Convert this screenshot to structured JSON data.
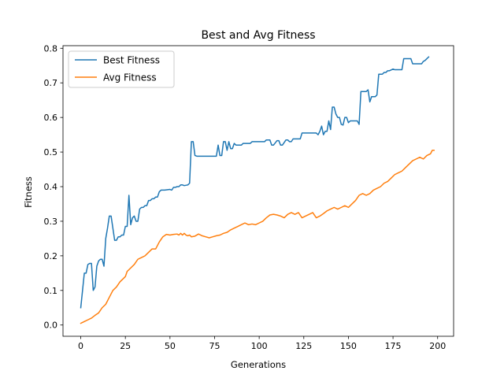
{
  "chart_data": {
    "type": "line",
    "title": "Best and Avg Fitness",
    "xlabel": "Generations",
    "ylabel": "Fitness",
    "xlim": [
      -9.95,
      208.95
    ],
    "ylim": [
      -0.0325,
      0.8075
    ],
    "xticks": [
      0,
      25,
      50,
      75,
      100,
      125,
      150,
      175,
      200
    ],
    "yticks": [
      0.0,
      0.1,
      0.2,
      0.3,
      0.4,
      0.5,
      0.6,
      0.7,
      0.8
    ],
    "xtick_labels": [
      "0",
      "25",
      "50",
      "75",
      "100",
      "125",
      "150",
      "175",
      "200"
    ],
    "ytick_labels": [
      "0.0",
      "0.1",
      "0.2",
      "0.3",
      "0.4",
      "0.5",
      "0.6",
      "0.7",
      "0.8"
    ],
    "grid": false,
    "legend_position": "top-left",
    "series": [
      {
        "name": "Best Fitness",
        "color": "#1f77b4",
        "points": [
          [
            0,
            0.05
          ],
          [
            1,
            0.1
          ],
          [
            2,
            0.15
          ],
          [
            3,
            0.15
          ],
          [
            4,
            0.175
          ],
          [
            5,
            0.178
          ],
          [
            6,
            0.178
          ],
          [
            7,
            0.1
          ],
          [
            8,
            0.11
          ],
          [
            9,
            0.17
          ],
          [
            10,
            0.185
          ],
          [
            11,
            0.19
          ],
          [
            12,
            0.19
          ],
          [
            13,
            0.17
          ],
          [
            14,
            0.25
          ],
          [
            15,
            0.28
          ],
          [
            16,
            0.315
          ],
          [
            17,
            0.315
          ],
          [
            18,
            0.28
          ],
          [
            19,
            0.245
          ],
          [
            20,
            0.245
          ],
          [
            21,
            0.255
          ],
          [
            22,
            0.255
          ],
          [
            23,
            0.26
          ],
          [
            24,
            0.26
          ],
          [
            25,
            0.285
          ],
          [
            26,
            0.285
          ],
          [
            27,
            0.375
          ],
          [
            28,
            0.29
          ],
          [
            29,
            0.31
          ],
          [
            30,
            0.315
          ],
          [
            31,
            0.3
          ],
          [
            32,
            0.3
          ],
          [
            33,
            0.335
          ],
          [
            34,
            0.34
          ],
          [
            35,
            0.34
          ],
          [
            36,
            0.345
          ],
          [
            37,
            0.345
          ],
          [
            38,
            0.36
          ],
          [
            39,
            0.36
          ],
          [
            40,
            0.365
          ],
          [
            41,
            0.365
          ],
          [
            42,
            0.37
          ],
          [
            43,
            0.37
          ],
          [
            44,
            0.385
          ],
          [
            45,
            0.39
          ],
          [
            47,
            0.39
          ],
          [
            50,
            0.392
          ],
          [
            51,
            0.39
          ],
          [
            52,
            0.398
          ],
          [
            53,
            0.398
          ],
          [
            54,
            0.4
          ],
          [
            55,
            0.4
          ],
          [
            56,
            0.405
          ],
          [
            57,
            0.405
          ],
          [
            58,
            0.403
          ],
          [
            60,
            0.405
          ],
          [
            61,
            0.41
          ],
          [
            62,
            0.53
          ],
          [
            63,
            0.53
          ],
          [
            64,
            0.49
          ],
          [
            65,
            0.488
          ],
          [
            66,
            0.488
          ],
          [
            70,
            0.488
          ],
          [
            75,
            0.488
          ],
          [
            76,
            0.488
          ],
          [
            77,
            0.52
          ],
          [
            78,
            0.49
          ],
          [
            79,
            0.49
          ],
          [
            80,
            0.53
          ],
          [
            81,
            0.53
          ],
          [
            82,
            0.505
          ],
          [
            83,
            0.53
          ],
          [
            84,
            0.51
          ],
          [
            85,
            0.51
          ],
          [
            86,
            0.525
          ],
          [
            87,
            0.52
          ],
          [
            90,
            0.52
          ],
          [
            91,
            0.525
          ],
          [
            95,
            0.525
          ],
          [
            96,
            0.53
          ],
          [
            100,
            0.53
          ],
          [
            103,
            0.53
          ],
          [
            104,
            0.535
          ],
          [
            106,
            0.535
          ],
          [
            107,
            0.52
          ],
          [
            108,
            0.52
          ],
          [
            110,
            0.533
          ],
          [
            111,
            0.533
          ],
          [
            112,
            0.52
          ],
          [
            113,
            0.52
          ],
          [
            115,
            0.535
          ],
          [
            116,
            0.535
          ],
          [
            117,
            0.53
          ],
          [
            118,
            0.53
          ],
          [
            119,
            0.538
          ],
          [
            123,
            0.538
          ],
          [
            124,
            0.555
          ],
          [
            127,
            0.555
          ],
          [
            132,
            0.555
          ],
          [
            133,
            0.55
          ],
          [
            134,
            0.56
          ],
          [
            135,
            0.575
          ],
          [
            136,
            0.55
          ],
          [
            137,
            0.56
          ],
          [
            138,
            0.56
          ],
          [
            139,
            0.59
          ],
          [
            140,
            0.565
          ],
          [
            141,
            0.63
          ],
          [
            142,
            0.63
          ],
          [
            143,
            0.61
          ],
          [
            144,
            0.6
          ],
          [
            145,
            0.6
          ],
          [
            146,
            0.58
          ],
          [
            147,
            0.578
          ],
          [
            148,
            0.6
          ],
          [
            149,
            0.6
          ],
          [
            150,
            0.585
          ],
          [
            151,
            0.59
          ],
          [
            155,
            0.59
          ],
          [
            156,
            0.58
          ],
          [
            157,
            0.675
          ],
          [
            160,
            0.675
          ],
          [
            161,
            0.68
          ],
          [
            162,
            0.645
          ],
          [
            163,
            0.66
          ],
          [
            165,
            0.66
          ],
          [
            166,
            0.665
          ],
          [
            167,
            0.725
          ],
          [
            168,
            0.725
          ],
          [
            169,
            0.725
          ],
          [
            170,
            0.73
          ],
          [
            171,
            0.73
          ],
          [
            172,
            0.735
          ],
          [
            173,
            0.735
          ],
          [
            175,
            0.74
          ],
          [
            176,
            0.738
          ],
          [
            180,
            0.738
          ],
          [
            181,
            0.77
          ],
          [
            185,
            0.77
          ],
          [
            186,
            0.755
          ],
          [
            191,
            0.755
          ],
          [
            192,
            0.762
          ],
          [
            193,
            0.765
          ],
          [
            194,
            0.77
          ],
          [
            195,
            0.775
          ]
        ]
      },
      {
        "name": "Avg Fitness",
        "color": "#ff7f0e",
        "points": [
          [
            0,
            0.005
          ],
          [
            2,
            0.01
          ],
          [
            4,
            0.015
          ],
          [
            6,
            0.02
          ],
          [
            8,
            0.028
          ],
          [
            10,
            0.035
          ],
          [
            12,
            0.05
          ],
          [
            14,
            0.06
          ],
          [
            15,
            0.07
          ],
          [
            16,
            0.08
          ],
          [
            18,
            0.1
          ],
          [
            20,
            0.11
          ],
          [
            22,
            0.125
          ],
          [
            24,
            0.135
          ],
          [
            25,
            0.14
          ],
          [
            26,
            0.155
          ],
          [
            28,
            0.165
          ],
          [
            30,
            0.175
          ],
          [
            32,
            0.19
          ],
          [
            34,
            0.195
          ],
          [
            36,
            0.2
          ],
          [
            38,
            0.21
          ],
          [
            40,
            0.22
          ],
          [
            42,
            0.22
          ],
          [
            44,
            0.24
          ],
          [
            46,
            0.255
          ],
          [
            48,
            0.262
          ],
          [
            50,
            0.26
          ],
          [
            52,
            0.262
          ],
          [
            54,
            0.263
          ],
          [
            55,
            0.26
          ],
          [
            56,
            0.265
          ],
          [
            57,
            0.26
          ],
          [
            58,
            0.265
          ],
          [
            59,
            0.26
          ],
          [
            60,
            0.258
          ],
          [
            61,
            0.26
          ],
          [
            62,
            0.255
          ],
          [
            64,
            0.257
          ],
          [
            66,
            0.263
          ],
          [
            68,
            0.258
          ],
          [
            70,
            0.255
          ],
          [
            72,
            0.252
          ],
          [
            74,
            0.255
          ],
          [
            76,
            0.258
          ],
          [
            78,
            0.26
          ],
          [
            80,
            0.265
          ],
          [
            82,
            0.268
          ],
          [
            84,
            0.275
          ],
          [
            86,
            0.28
          ],
          [
            88,
            0.285
          ],
          [
            90,
            0.29
          ],
          [
            92,
            0.295
          ],
          [
            94,
            0.29
          ],
          [
            96,
            0.292
          ],
          [
            98,
            0.29
          ],
          [
            100,
            0.295
          ],
          [
            102,
            0.3
          ],
          [
            104,
            0.31
          ],
          [
            106,
            0.318
          ],
          [
            108,
            0.32
          ],
          [
            110,
            0.318
          ],
          [
            112,
            0.315
          ],
          [
            114,
            0.31
          ],
          [
            116,
            0.32
          ],
          [
            118,
            0.325
          ],
          [
            120,
            0.32
          ],
          [
            122,
            0.325
          ],
          [
            124,
            0.31
          ],
          [
            126,
            0.315
          ],
          [
            128,
            0.32
          ],
          [
            130,
            0.325
          ],
          [
            132,
            0.31
          ],
          [
            134,
            0.315
          ],
          [
            136,
            0.322
          ],
          [
            138,
            0.33
          ],
          [
            140,
            0.335
          ],
          [
            142,
            0.34
          ],
          [
            144,
            0.335
          ],
          [
            146,
            0.34
          ],
          [
            148,
            0.345
          ],
          [
            150,
            0.34
          ],
          [
            152,
            0.35
          ],
          [
            154,
            0.36
          ],
          [
            156,
            0.375
          ],
          [
            158,
            0.38
          ],
          [
            160,
            0.375
          ],
          [
            162,
            0.38
          ],
          [
            164,
            0.39
          ],
          [
            166,
            0.395
          ],
          [
            168,
            0.4
          ],
          [
            170,
            0.41
          ],
          [
            172,
            0.415
          ],
          [
            174,
            0.425
          ],
          [
            176,
            0.435
          ],
          [
            178,
            0.44
          ],
          [
            180,
            0.445
          ],
          [
            182,
            0.455
          ],
          [
            184,
            0.465
          ],
          [
            186,
            0.475
          ],
          [
            188,
            0.48
          ],
          [
            190,
            0.485
          ],
          [
            192,
            0.48
          ],
          [
            194,
            0.49
          ],
          [
            196,
            0.495
          ],
          [
            197,
            0.505
          ],
          [
            198,
            0.505
          ]
        ]
      }
    ]
  }
}
